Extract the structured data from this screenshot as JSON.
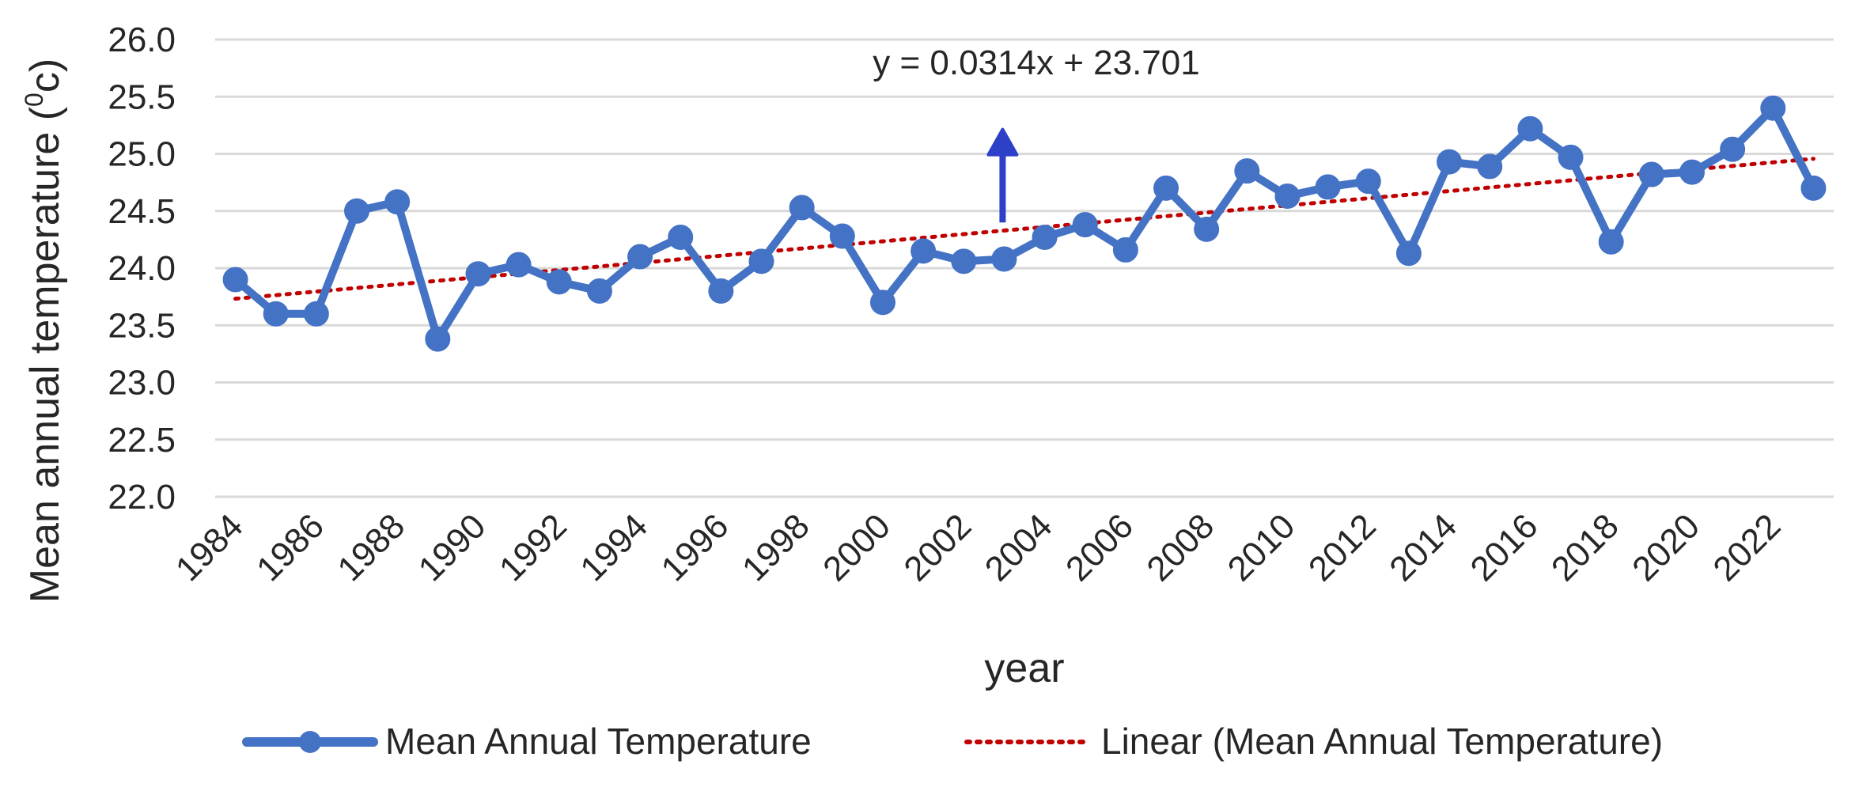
{
  "chart_data": {
    "type": "line",
    "title": "",
    "xlabel": "year",
    "ylabel_main": "Mean annual temperature (",
    "ylabel_sup": "0",
    "ylabel_tail": "c)",
    "ylim": [
      22.0,
      26.0
    ],
    "ytick_labels": [
      "22.0",
      "22.5",
      "23.0",
      "23.5",
      "24.0",
      "24.5",
      "25.0",
      "25.5",
      "26.0"
    ],
    "xtick_labels": [
      "1984",
      "1986",
      "1988",
      "1990",
      "1992",
      "1994",
      "1996",
      "1998",
      "2000",
      "2002",
      "2004",
      "2006",
      "2008",
      "2010",
      "2012",
      "2014",
      "2016",
      "2018",
      "2020",
      "2022"
    ],
    "x": [
      1984,
      1985,
      1986,
      1987,
      1988,
      1989,
      1990,
      1991,
      1992,
      1993,
      1994,
      1995,
      1996,
      1997,
      1998,
      1999,
      2000,
      2001,
      2002,
      2003,
      2004,
      2005,
      2006,
      2007,
      2008,
      2009,
      2010,
      2011,
      2012,
      2013,
      2014,
      2015,
      2016,
      2017,
      2018,
      2019,
      2020,
      2021,
      2022,
      2023
    ],
    "series": [
      {
        "name": "Mean Annual Temperature",
        "color": "#4472C4",
        "values": [
          23.9,
          23.6,
          23.6,
          24.5,
          24.58,
          23.38,
          23.95,
          24.03,
          23.88,
          23.8,
          24.1,
          24.27,
          23.8,
          24.06,
          24.53,
          24.28,
          23.7,
          24.15,
          24.06,
          24.08,
          24.27,
          24.38,
          24.16,
          24.7,
          24.34,
          24.85,
          24.63,
          24.71,
          24.76,
          24.13,
          24.93,
          24.89,
          25.22,
          24.97,
          24.23,
          24.82,
          24.84,
          25.04,
          25.4,
          24.7
        ]
      }
    ],
    "trendline": {
      "name": "Linear (Mean Annual Temperature)",
      "color": "#C00000",
      "slope": 0.0314,
      "intercept": 23.701,
      "equation": "y = 0.0314x + 23.701"
    },
    "annotation_arrow": {
      "color": "#2E3FC8",
      "at_index": 19,
      "from_value": 24.4,
      "to_value": 25.2
    },
    "legend": {
      "position": "bottom",
      "items": [
        "Mean Annual Temperature",
        "Linear (Mean Annual Temperature)"
      ]
    }
  }
}
